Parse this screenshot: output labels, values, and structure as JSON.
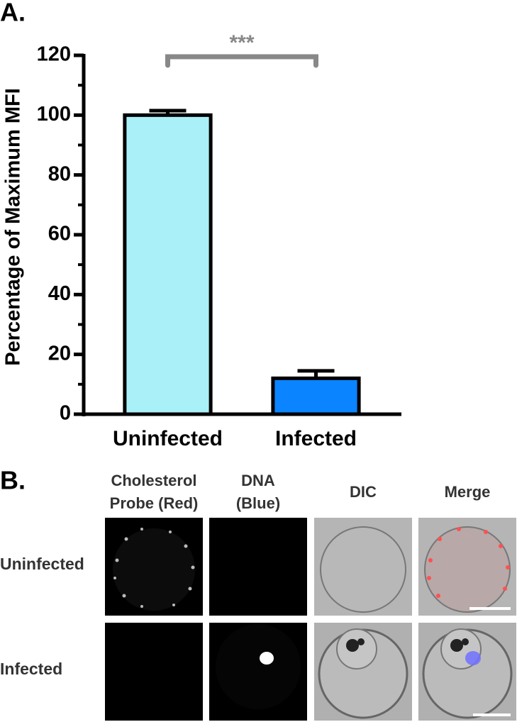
{
  "chart_data": {
    "type": "bar",
    "panel_label": "A.",
    "y_label": "Percentage of Maximum MFI",
    "categories": [
      "Uninfected",
      "Infected"
    ],
    "values": [
      100,
      12
    ],
    "errors": [
      1.5,
      2.5
    ],
    "colors": [
      "#aaf0f8",
      "#0a84ff"
    ],
    "ylim": [
      0,
      120
    ],
    "yticks": [
      0,
      20,
      40,
      60,
      80,
      100,
      120
    ],
    "minor_yticks": [
      10,
      30,
      50,
      70,
      90,
      110
    ],
    "annotation": "***"
  },
  "panel_b": {
    "panel_label": "B.",
    "columns": [
      "Cholesterol Probe (Red)",
      "DNA (Blue)",
      "DIC",
      "Merge"
    ],
    "rows": [
      "Uninfected",
      "Infected"
    ]
  }
}
